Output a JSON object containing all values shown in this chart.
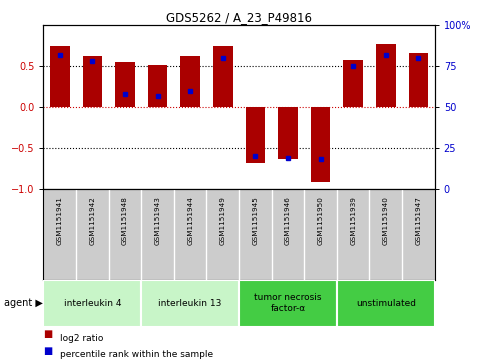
{
  "title": "GDS5262 / A_23_P49816",
  "samples": [
    "GSM1151941",
    "GSM1151942",
    "GSM1151948",
    "GSM1151943",
    "GSM1151944",
    "GSM1151949",
    "GSM1151945",
    "GSM1151946",
    "GSM1151950",
    "GSM1151939",
    "GSM1151940",
    "GSM1151947"
  ],
  "log2_ratios": [
    0.75,
    0.62,
    0.55,
    0.52,
    0.63,
    0.75,
    -0.68,
    -0.64,
    -0.92,
    0.58,
    0.77,
    0.66
  ],
  "percentile_ranks": [
    82,
    78,
    58,
    57,
    60,
    80,
    20,
    19,
    18,
    75,
    82,
    80
  ],
  "groups": [
    {
      "label": "interleukin 4",
      "indices": [
        0,
        1,
        2
      ],
      "color": "#c8f5c8"
    },
    {
      "label": "interleukin 13",
      "indices": [
        3,
        4,
        5
      ],
      "color": "#c8f5c8"
    },
    {
      "label": "tumor necrosis\nfactor-α",
      "indices": [
        6,
        7,
        8
      ],
      "color": "#44cc44"
    },
    {
      "label": "unstimulated",
      "indices": [
        9,
        10,
        11
      ],
      "color": "#44cc44"
    }
  ],
  "bar_color": "#aa0000",
  "dot_color": "#0000cc",
  "bar_width": 0.6,
  "ylim_left": [
    -1,
    1
  ],
  "ylim_right": [
    0,
    100
  ],
  "yticks_left": [
    -1,
    -0.5,
    0,
    0.5
  ],
  "yticks_right": [
    0,
    25,
    50,
    75,
    100
  ],
  "background_color": "#ffffff",
  "plot_bg_color": "#ffffff",
  "left_tick_color": "#cc0000",
  "right_tick_color": "#0000cc",
  "sample_bg_color": "#cccccc",
  "sample_divider_color": "#ffffff"
}
